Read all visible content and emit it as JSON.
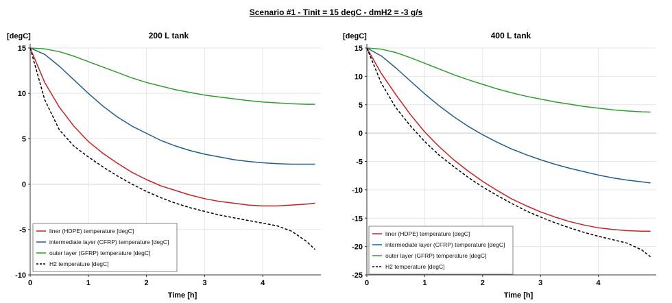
{
  "title": "Scenario #1 - Tinit = 15 degC - dmH2 = -3 g/s",
  "colors": {
    "liner": "#cc1f1f",
    "intermediate": "#1f5f8f",
    "outer": "#2e9e2e",
    "h2": "#000000"
  },
  "chart_data": [
    {
      "type": "line",
      "title": "200 L tank",
      "ylabel": "[degC]",
      "xlabel": "Time [h]",
      "xlim": [
        0,
        5
      ],
      "ylim": [
        -10,
        15
      ],
      "xticks": [
        0,
        1,
        2,
        3,
        4
      ],
      "yticks": [
        -10,
        -5,
        0,
        5,
        10,
        15
      ],
      "grid": true,
      "legend": "bottom-left",
      "x": [
        0,
        0.25,
        0.5,
        0.75,
        1,
        1.25,
        1.5,
        1.75,
        2,
        2.25,
        2.5,
        2.75,
        3,
        3.25,
        3.5,
        3.75,
        4,
        4.25,
        4.5,
        4.75,
        4.9
      ],
      "series": [
        {
          "name": "liner (HDPE) temperature [degC]",
          "color_key": "liner",
          "dash": false,
          "values": [
            15,
            11.2,
            8.5,
            6.4,
            4.7,
            3.4,
            2.3,
            1.3,
            0.5,
            -0.2,
            -0.7,
            -1.2,
            -1.6,
            -1.9,
            -2.1,
            -2.3,
            -2.4,
            -2.4,
            -2.3,
            -2.2,
            -2.1
          ]
        },
        {
          "name": "intermediate layer (CFRP) temperature [degC]",
          "color_key": "intermediate",
          "dash": false,
          "values": [
            15,
            14.3,
            13.0,
            11.5,
            10.0,
            8.6,
            7.4,
            6.4,
            5.6,
            4.8,
            4.2,
            3.7,
            3.3,
            3.0,
            2.7,
            2.5,
            2.35,
            2.25,
            2.2,
            2.2,
            2.2
          ]
        },
        {
          "name": "outer layer (GFRP) temperature [degC]",
          "color_key": "outer",
          "dash": false,
          "values": [
            15,
            14.9,
            14.6,
            14.1,
            13.5,
            12.9,
            12.3,
            11.7,
            11.2,
            10.8,
            10.4,
            10.1,
            9.8,
            9.6,
            9.4,
            9.2,
            9.05,
            8.95,
            8.85,
            8.8,
            8.8
          ]
        },
        {
          "name": "H2 temperature [degC]",
          "color_key": "h2",
          "dash": true,
          "values": [
            15,
            9.3,
            6.0,
            4.2,
            3.0,
            1.9,
            0.9,
            0.0,
            -0.8,
            -1.5,
            -2.1,
            -2.6,
            -3.0,
            -3.4,
            -3.7,
            -4.0,
            -4.3,
            -4.6,
            -5.2,
            -6.3,
            -7.2
          ]
        }
      ]
    },
    {
      "type": "line",
      "title": "400 L tank",
      "ylabel": "[degC]",
      "xlabel": "Time [h]",
      "xlim": [
        0,
        5
      ],
      "ylim": [
        -25,
        15
      ],
      "xticks": [
        0,
        1,
        2,
        3,
        4
      ],
      "yticks": [
        -25,
        -20,
        -15,
        -10,
        -5,
        0,
        5,
        10,
        15
      ],
      "grid": true,
      "legend": "bottom-left",
      "x": [
        0,
        0.25,
        0.5,
        0.75,
        1,
        1.25,
        1.5,
        1.75,
        2,
        2.25,
        2.5,
        2.75,
        3,
        3.25,
        3.5,
        3.75,
        4,
        4.25,
        4.5,
        4.75,
        4.9
      ],
      "series": [
        {
          "name": "liner (HDPE) temperature [degC]",
          "color_key": "liner",
          "dash": false,
          "values": [
            15,
            10.5,
            6.8,
            3.3,
            0.2,
            -2.4,
            -4.7,
            -6.7,
            -8.5,
            -10.1,
            -11.6,
            -12.8,
            -13.9,
            -14.8,
            -15.6,
            -16.2,
            -16.7,
            -17.0,
            -17.2,
            -17.3,
            -17.3
          ]
        },
        {
          "name": "intermediate layer (CFRP) temperature [degC]",
          "color_key": "intermediate",
          "dash": false,
          "values": [
            15,
            13.6,
            11.5,
            9.2,
            6.9,
            4.8,
            2.9,
            1.2,
            -0.3,
            -1.6,
            -2.8,
            -3.8,
            -4.7,
            -5.5,
            -6.2,
            -6.8,
            -7.4,
            -7.9,
            -8.3,
            -8.6,
            -8.8
          ]
        },
        {
          "name": "outer layer (GFRP) temperature [degC]",
          "color_key": "outer",
          "dash": false,
          "values": [
            15,
            14.8,
            14.2,
            13.3,
            12.3,
            11.3,
            10.3,
            9.4,
            8.6,
            7.8,
            7.1,
            6.5,
            6.0,
            5.5,
            5.1,
            4.7,
            4.4,
            4.1,
            3.9,
            3.75,
            3.7
          ]
        },
        {
          "name": "H2 temperature [degC]",
          "color_key": "h2",
          "dash": true,
          "values": [
            15,
            8.8,
            4.5,
            1.3,
            -1.5,
            -3.9,
            -5.9,
            -7.8,
            -9.5,
            -11.0,
            -12.4,
            -13.7,
            -14.8,
            -15.8,
            -16.7,
            -17.5,
            -18.2,
            -18.8,
            -19.4,
            -20.6,
            -21.8
          ]
        }
      ]
    }
  ]
}
